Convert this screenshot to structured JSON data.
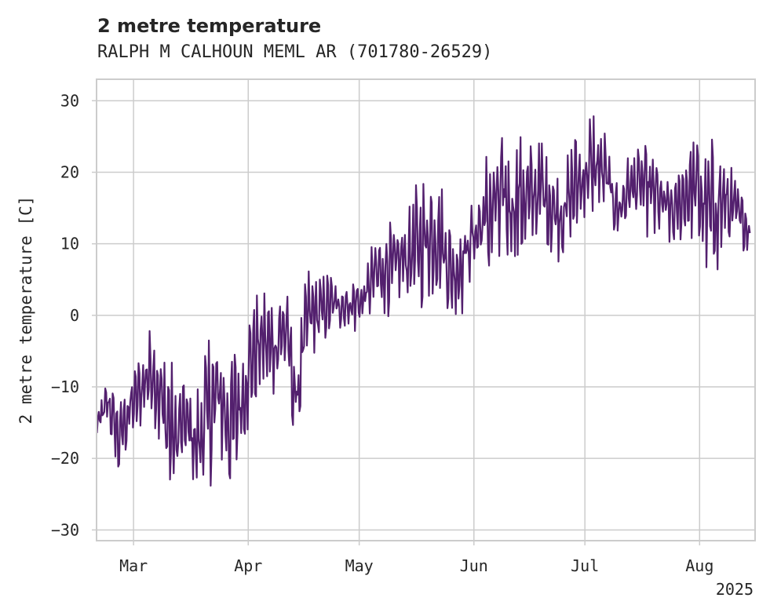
{
  "chart_data": {
    "type": "line",
    "title": "2 metre temperature",
    "subtitle": "RALPH M CALHOUN MEML AR (701780-26529)",
    "ylabel": "2 metre temperature [C]",
    "xlabel": "",
    "x_range": [
      "2025-02-19",
      "2025-08-16"
    ],
    "ylim": [
      -31.5,
      33
    ],
    "yticks": [
      -30,
      -20,
      -10,
      0,
      10,
      20,
      30
    ],
    "xticks": [
      {
        "date": "2025-03-01",
        "label": "Mar"
      },
      {
        "date": "2025-04-01",
        "label": "Apr"
      },
      {
        "date": "2025-05-01",
        "label": "May"
      },
      {
        "date": "2025-06-01",
        "label": "Jun"
      },
      {
        "date": "2025-07-01",
        "label": "Jul"
      },
      {
        "date": "2025-08-01",
        "label": "Aug"
      }
    ],
    "year_label": "2025",
    "grid": true,
    "legend": "none",
    "line_color": "#53206e",
    "series": [
      {
        "x": [
          "2025-02-19",
          "2025-02-22",
          "2025-02-25",
          "2025-02-28",
          "2025-03-03",
          "2025-03-06",
          "2025-03-09",
          "2025-03-12",
          "2025-03-15",
          "2025-03-18",
          "2025-03-21",
          "2025-03-24",
          "2025-03-27",
          "2025-03-30",
          "2025-04-02",
          "2025-04-05",
          "2025-04-08",
          "2025-04-11",
          "2025-04-14",
          "2025-04-17",
          "2025-04-20",
          "2025-04-23",
          "2025-04-26",
          "2025-04-29",
          "2025-05-02",
          "2025-05-05",
          "2025-05-08",
          "2025-05-11",
          "2025-05-14",
          "2025-05-17",
          "2025-05-20",
          "2025-05-23",
          "2025-05-26",
          "2025-05-29",
          "2025-06-01",
          "2025-06-04",
          "2025-06-07",
          "2025-06-10",
          "2025-06-13",
          "2025-06-16",
          "2025-06-19",
          "2025-06-22",
          "2025-06-25",
          "2025-06-28",
          "2025-07-01",
          "2025-07-04",
          "2025-07-07",
          "2025-07-10",
          "2025-07-13",
          "2025-07-16",
          "2025-07-19",
          "2025-07-22",
          "2025-07-25",
          "2025-07-28",
          "2025-07-31",
          "2025-08-03",
          "2025-08-06",
          "2025-08-09",
          "2025-08-12",
          "2025-08-15"
        ],
        "min": [
          -20,
          -15,
          -24,
          -17,
          -16,
          -13,
          -23,
          -28,
          -20,
          -27,
          -25,
          -21,
          -26,
          -22,
          -14,
          -13,
          -12,
          -10,
          -20,
          -7,
          -5,
          -3,
          -2,
          -3,
          -2,
          0,
          -1,
          2,
          1,
          0,
          2,
          3,
          -2,
          0,
          5,
          4,
          3,
          2,
          5,
          8,
          10,
          8,
          7,
          10,
          11,
          12,
          13,
          10,
          12,
          14,
          9,
          10,
          9,
          11,
          10,
          4,
          5,
          8,
          9,
          9
        ],
        "max": [
          -12,
          -9,
          -11,
          -9,
          -5,
          -1,
          -3,
          -7,
          -9,
          -10,
          -2,
          -1,
          -5,
          -2,
          2,
          6,
          3,
          7,
          -5,
          7,
          6,
          6,
          5,
          6,
          6,
          11,
          14,
          12,
          16,
          19,
          21,
          19,
          13,
          16,
          17,
          23,
          27,
          29,
          28,
          24,
          26,
          22,
          21,
          26,
          28,
          30,
          25,
          19,
          24,
          23,
          25,
          21,
          19,
          23,
          26,
          24,
          26,
          23,
          18,
          14
        ]
      }
    ]
  }
}
